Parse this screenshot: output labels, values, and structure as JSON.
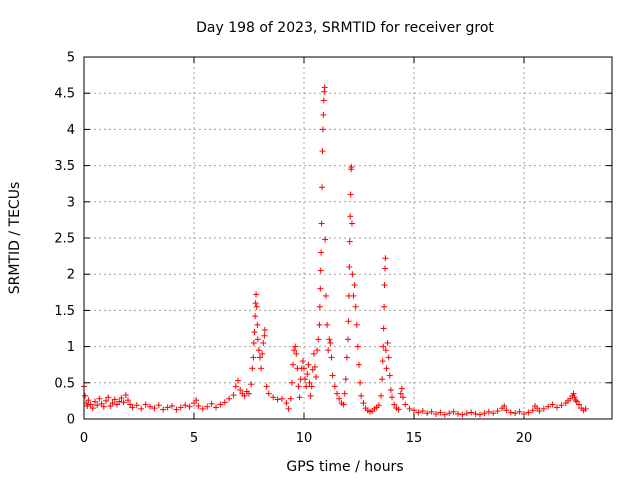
{
  "chart_data": {
    "type": "scatter",
    "title": "Day 198 of 2023, SRMTID for receiver grot",
    "xlabel": "GPS time / hours",
    "ylabel": "SRMTID / TECUs",
    "xlim": [
      0,
      24
    ],
    "ylim": [
      0,
      5
    ],
    "xticks": [
      0,
      5,
      10,
      15,
      20
    ],
    "yticks": [
      0,
      0.5,
      1,
      1.5,
      2,
      2.5,
      3,
      3.5,
      4,
      4.5,
      5
    ],
    "xtick_labels": [
      "0",
      "5",
      "10",
      "15",
      "20"
    ],
    "ytick_labels": [
      "0",
      "0.5",
      "1",
      "1.5",
      "2",
      "2.5",
      "3",
      "3.5",
      "4",
      "4.5",
      "5"
    ],
    "grid": true,
    "marker": "+",
    "color": "#ff0000",
    "series": [
      {
        "name": "SRMTID",
        "points": [
          [
            0.0,
            0.45
          ],
          [
            0.05,
            0.32
          ],
          [
            0.1,
            0.22
          ],
          [
            0.15,
            0.18
          ],
          [
            0.2,
            0.26
          ],
          [
            0.3,
            0.2
          ],
          [
            0.4,
            0.15
          ],
          [
            0.5,
            0.24
          ],
          [
            0.6,
            0.19
          ],
          [
            0.7,
            0.28
          ],
          [
            0.8,
            0.21
          ],
          [
            0.9,
            0.17
          ],
          [
            1.0,
            0.25
          ],
          [
            1.1,
            0.3
          ],
          [
            1.2,
            0.18
          ],
          [
            1.3,
            0.22
          ],
          [
            1.4,
            0.27
          ],
          [
            1.5,
            0.2
          ],
          [
            1.6,
            0.24
          ],
          [
            1.7,
            0.29
          ],
          [
            1.8,
            0.23
          ],
          [
            1.9,
            0.33
          ],
          [
            2.0,
            0.26
          ],
          [
            2.1,
            0.2
          ],
          [
            2.2,
            0.16
          ],
          [
            2.4,
            0.19
          ],
          [
            2.6,
            0.14
          ],
          [
            2.8,
            0.2
          ],
          [
            3.0,
            0.17
          ],
          [
            3.2,
            0.15
          ],
          [
            3.4,
            0.19
          ],
          [
            3.6,
            0.13
          ],
          [
            3.8,
            0.16
          ],
          [
            4.0,
            0.18
          ],
          [
            4.2,
            0.13
          ],
          [
            4.4,
            0.16
          ],
          [
            4.6,
            0.19
          ],
          [
            4.8,
            0.17
          ],
          [
            5.0,
            0.22
          ],
          [
            5.1,
            0.26
          ],
          [
            5.2,
            0.18
          ],
          [
            5.4,
            0.14
          ],
          [
            5.6,
            0.17
          ],
          [
            5.8,
            0.21
          ],
          [
            6.0,
            0.16
          ],
          [
            6.2,
            0.2
          ],
          [
            6.4,
            0.23
          ],
          [
            6.6,
            0.28
          ],
          [
            6.8,
            0.33
          ],
          [
            6.9,
            0.45
          ],
          [
            7.0,
            0.53
          ],
          [
            7.1,
            0.4
          ],
          [
            7.2,
            0.35
          ],
          [
            7.3,
            0.32
          ],
          [
            7.4,
            0.38
          ],
          [
            7.5,
            0.35
          ],
          [
            7.6,
            0.48
          ],
          [
            7.65,
            0.7
          ],
          [
            7.7,
            0.85
          ],
          [
            7.72,
            1.05
          ],
          [
            7.75,
            1.2
          ],
          [
            7.78,
            1.42
          ],
          [
            7.8,
            1.6
          ],
          [
            7.82,
            1.72
          ],
          [
            7.85,
            1.55
          ],
          [
            7.88,
            1.3
          ],
          [
            7.9,
            1.1
          ],
          [
            7.95,
            0.95
          ],
          [
            8.0,
            0.85
          ],
          [
            8.05,
            0.7
          ],
          [
            8.1,
            0.9
          ],
          [
            8.15,
            1.05
          ],
          [
            8.2,
            1.15
          ],
          [
            8.22,
            1.23
          ],
          [
            8.3,
            0.45
          ],
          [
            8.4,
            0.35
          ],
          [
            8.6,
            0.3
          ],
          [
            8.8,
            0.27
          ],
          [
            9.0,
            0.28
          ],
          [
            9.2,
            0.22
          ],
          [
            9.3,
            0.14
          ],
          [
            9.4,
            0.28
          ],
          [
            9.45,
            0.5
          ],
          [
            9.5,
            0.75
          ],
          [
            9.55,
            0.95
          ],
          [
            9.6,
            1.0
          ],
          [
            9.65,
            0.9
          ],
          [
            9.7,
            0.7
          ],
          [
            9.75,
            0.45
          ],
          [
            9.8,
            0.3
          ],
          [
            9.85,
            0.55
          ],
          [
            9.9,
            0.7
          ],
          [
            9.95,
            0.8
          ],
          [
            10.0,
            0.7
          ],
          [
            10.05,
            0.55
          ],
          [
            10.1,
            0.45
          ],
          [
            10.15,
            0.62
          ],
          [
            10.2,
            0.75
          ],
          [
            10.25,
            0.5
          ],
          [
            10.3,
            0.32
          ],
          [
            10.35,
            0.45
          ],
          [
            10.4,
            0.68
          ],
          [
            10.45,
            0.9
          ],
          [
            10.5,
            0.72
          ],
          [
            10.55,
            0.58
          ],
          [
            10.6,
            0.95
          ],
          [
            10.65,
            1.1
          ],
          [
            10.7,
            1.3
          ],
          [
            10.72,
            1.55
          ],
          [
            10.74,
            1.8
          ],
          [
            10.76,
            2.05
          ],
          [
            10.78,
            2.3
          ],
          [
            10.8,
            2.7
          ],
          [
            10.82,
            3.2
          ],
          [
            10.84,
            3.7
          ],
          [
            10.86,
            4.0
          ],
          [
            10.88,
            4.2
          ],
          [
            10.9,
            4.4
          ],
          [
            10.92,
            4.52
          ],
          [
            10.94,
            4.58
          ],
          [
            10.96,
            2.48
          ],
          [
            11.0,
            1.7
          ],
          [
            11.05,
            1.3
          ],
          [
            11.1,
            0.95
          ],
          [
            11.15,
            1.1
          ],
          [
            11.2,
            1.05
          ],
          [
            11.25,
            0.85
          ],
          [
            11.3,
            0.6
          ],
          [
            11.4,
            0.45
          ],
          [
            11.5,
            0.35
          ],
          [
            11.6,
            0.28
          ],
          [
            11.7,
            0.22
          ],
          [
            11.8,
            0.2
          ],
          [
            11.85,
            0.35
          ],
          [
            11.9,
            0.55
          ],
          [
            11.95,
            0.85
          ],
          [
            12.0,
            1.1
          ],
          [
            12.02,
            1.35
          ],
          [
            12.04,
            1.7
          ],
          [
            12.06,
            2.1
          ],
          [
            12.08,
            2.45
          ],
          [
            12.1,
            2.8
          ],
          [
            12.12,
            3.1
          ],
          [
            12.14,
            3.45
          ],
          [
            12.16,
            3.48
          ],
          [
            12.18,
            2.7
          ],
          [
            12.2,
            2.0
          ],
          [
            12.25,
            1.7
          ],
          [
            12.3,
            1.85
          ],
          [
            12.35,
            1.55
          ],
          [
            12.4,
            1.3
          ],
          [
            12.45,
            1.0
          ],
          [
            12.5,
            0.75
          ],
          [
            12.55,
            0.5
          ],
          [
            12.6,
            0.32
          ],
          [
            12.7,
            0.22
          ],
          [
            12.8,
            0.15
          ],
          [
            12.9,
            0.12
          ],
          [
            13.0,
            0.1
          ],
          [
            13.1,
            0.11
          ],
          [
            13.2,
            0.14
          ],
          [
            13.3,
            0.16
          ],
          [
            13.4,
            0.19
          ],
          [
            13.5,
            0.32
          ],
          [
            13.55,
            0.55
          ],
          [
            13.58,
            0.8
          ],
          [
            13.6,
            1.0
          ],
          [
            13.62,
            1.25
          ],
          [
            13.64,
            1.55
          ],
          [
            13.66,
            1.85
          ],
          [
            13.68,
            2.08
          ],
          [
            13.7,
            2.22
          ],
          [
            13.72,
            0.95
          ],
          [
            13.75,
            0.7
          ],
          [
            13.8,
            1.05
          ],
          [
            13.85,
            0.85
          ],
          [
            13.9,
            0.6
          ],
          [
            13.95,
            0.4
          ],
          [
            14.0,
            0.3
          ],
          [
            14.1,
            0.2
          ],
          [
            14.2,
            0.15
          ],
          [
            14.3,
            0.13
          ],
          [
            14.4,
            0.35
          ],
          [
            14.45,
            0.42
          ],
          [
            14.5,
            0.3
          ],
          [
            14.6,
            0.2
          ],
          [
            14.8,
            0.14
          ],
          [
            15.0,
            0.12
          ],
          [
            15.2,
            0.09
          ],
          [
            15.4,
            0.11
          ],
          [
            15.6,
            0.08
          ],
          [
            15.8,
            0.1
          ],
          [
            16.0,
            0.07
          ],
          [
            16.2,
            0.09
          ],
          [
            16.4,
            0.06
          ],
          [
            16.6,
            0.08
          ],
          [
            16.8,
            0.1
          ],
          [
            17.0,
            0.07
          ],
          [
            17.2,
            0.06
          ],
          [
            17.4,
            0.08
          ],
          [
            17.6,
            0.09
          ],
          [
            17.8,
            0.07
          ],
          [
            18.0,
            0.06
          ],
          [
            18.2,
            0.08
          ],
          [
            18.4,
            0.1
          ],
          [
            18.6,
            0.08
          ],
          [
            18.8,
            0.11
          ],
          [
            19.0,
            0.15
          ],
          [
            19.1,
            0.18
          ],
          [
            19.2,
            0.12
          ],
          [
            19.4,
            0.09
          ],
          [
            19.6,
            0.08
          ],
          [
            19.8,
            0.1
          ],
          [
            20.0,
            0.07
          ],
          [
            20.2,
            0.09
          ],
          [
            20.4,
            0.12
          ],
          [
            20.5,
            0.18
          ],
          [
            20.6,
            0.15
          ],
          [
            20.7,
            0.11
          ],
          [
            20.9,
            0.14
          ],
          [
            21.1,
            0.17
          ],
          [
            21.3,
            0.2
          ],
          [
            21.5,
            0.16
          ],
          [
            21.7,
            0.19
          ],
          [
            21.9,
            0.22
          ],
          [
            22.0,
            0.25
          ],
          [
            22.1,
            0.28
          ],
          [
            22.2,
            0.32
          ],
          [
            22.25,
            0.35
          ],
          [
            22.3,
            0.3
          ],
          [
            22.35,
            0.26
          ],
          [
            22.4,
            0.24
          ],
          [
            22.5,
            0.2
          ],
          [
            22.6,
            0.15
          ],
          [
            22.7,
            0.12
          ],
          [
            22.8,
            0.14
          ]
        ]
      }
    ]
  }
}
